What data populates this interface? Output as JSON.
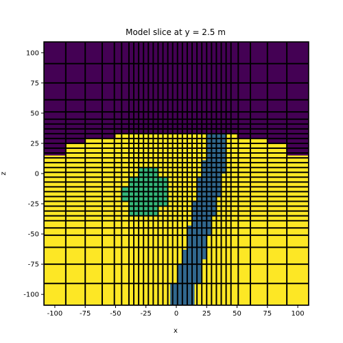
{
  "chart_data": {
    "type": "heatmap",
    "title": "Model slice at y = 2.5 m",
    "xlabel": "x",
    "ylabel": "z",
    "xlim": [
      -109,
      109
    ],
    "ylim": [
      -109,
      109
    ],
    "x_ticks": [
      -100,
      -75,
      -50,
      -25,
      0,
      25,
      50,
      75,
      100
    ],
    "y_ticks": [
      -100,
      -75,
      -50,
      -25,
      0,
      25,
      50,
      75,
      100
    ],
    "grid_lines": true,
    "colormap": {
      "background": "#440154",
      "topography_fill": "#fde725",
      "block_a": "#35b779",
      "block_b": "#31688e"
    },
    "cell_edges": [
      -109,
      -91,
      -75,
      -61,
      -51,
      -45,
      -39,
      -35,
      -31,
      -27,
      -23,
      -19,
      -15,
      -11,
      -7,
      -3,
      1,
      5,
      9,
      13,
      17,
      21,
      25,
      29,
      33,
      37,
      41,
      45,
      51,
      61,
      75,
      91,
      109
    ],
    "regions": [
      {
        "name": "",
        "color": "#fde725",
        "polygon": [
          [
            -109,
            -109
          ],
          [
            109,
            -109
          ],
          [
            109,
            15
          ],
          [
            91,
            15
          ],
          [
            91,
            25
          ],
          [
            75,
            25
          ],
          [
            75,
            29
          ],
          [
            50,
            29
          ],
          [
            50,
            33
          ],
          [
            -50,
            33
          ],
          [
            -50,
            29
          ],
          [
            -75,
            29
          ],
          [
            -75,
            25
          ],
          [
            -91,
            25
          ],
          [
            -91,
            15
          ],
          [
            -109,
            15
          ]
        ]
      },
      {
        "name": "",
        "color": "#35b779",
        "polygon": [
          [
            -45,
            -23
          ],
          [
            -45,
            -11
          ],
          [
            -39,
            -11
          ],
          [
            -39,
            -3
          ],
          [
            -31,
            -3
          ],
          [
            -31,
            5
          ],
          [
            -15,
            5
          ],
          [
            -15,
            -3
          ],
          [
            -7,
            -3
          ],
          [
            -7,
            -27
          ],
          [
            -15,
            -27
          ],
          [
            -15,
            -35
          ],
          [
            -39,
            -35
          ],
          [
            -39,
            -23
          ]
        ]
      },
      {
        "name": "",
        "color": "#31688e",
        "polygon": [
          [
            -5,
            -109
          ],
          [
            15,
            -109
          ],
          [
            15,
            -91
          ],
          [
            21,
            -91
          ],
          [
            21,
            -71
          ],
          [
            25,
            -71
          ],
          [
            25,
            -51
          ],
          [
            29,
            -51
          ],
          [
            29,
            -35
          ],
          [
            33,
            -35
          ],
          [
            33,
            -19
          ],
          [
            37,
            -19
          ],
          [
            37,
            0
          ],
          [
            41,
            0
          ],
          [
            41,
            33
          ],
          [
            25,
            33
          ],
          [
            25,
            11
          ],
          [
            21,
            11
          ],
          [
            21,
            -3
          ],
          [
            17,
            -3
          ],
          [
            17,
            -23
          ],
          [
            13,
            -23
          ],
          [
            13,
            -43
          ],
          [
            9,
            -43
          ],
          [
            9,
            -63
          ],
          [
            5,
            -63
          ],
          [
            5,
            -75
          ],
          [
            1,
            -75
          ],
          [
            1,
            -91
          ],
          [
            -5,
            -91
          ]
        ]
      }
    ]
  }
}
